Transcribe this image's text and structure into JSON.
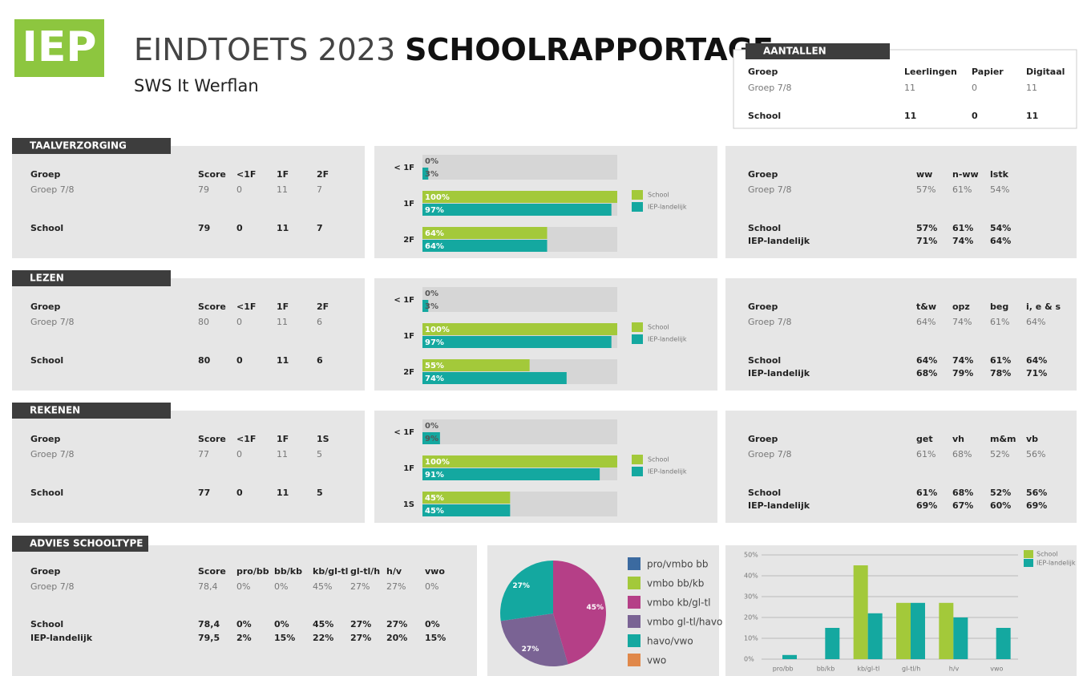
{
  "header": {
    "logo": "IEP",
    "title_light": "EINDTOETS 2023",
    "title_bold": "SCHOOLRAPPORTAGE",
    "school": "SWS It Werflan"
  },
  "aantallen": {
    "label": "AANTALLEN",
    "headers": [
      "Groep",
      "Leerlingen",
      "Papier",
      "Digitaal"
    ],
    "rows": [
      [
        "Groep 7/8",
        "11",
        "0",
        "11"
      ],
      [
        "School",
        "11",
        "0",
        "11"
      ]
    ]
  },
  "subjects": [
    {
      "label": "TAALVERZORGING",
      "table": {
        "headers": [
          "Groep",
          "Score",
          "<1F",
          "1F",
          "2F"
        ],
        "rows": [
          [
            "Groep 7/8",
            "79",
            "0",
            "11",
            "7"
          ],
          [
            "School",
            "79",
            "0",
            "11",
            "7"
          ]
        ]
      },
      "chart": {
        "type": "bar",
        "categories": [
          "< 1F",
          "1F",
          "2F"
        ],
        "xlim": [
          0,
          100
        ],
        "series": [
          {
            "name": "School",
            "color": "#a3c93a",
            "values": [
              0,
              100,
              64
            ],
            "value_labels": [
              "0%",
              "100%",
              "64%"
            ]
          },
          {
            "name": "IEP-landelijk",
            "color": "#14a8a0",
            "values": [
              3,
              97,
              64
            ],
            "value_labels": [
              "3%",
              "97%",
              "64%"
            ]
          }
        ]
      },
      "domains": {
        "headers": [
          "Groep",
          "ww",
          "n-ww",
          "lstk"
        ],
        "rows": [
          [
            "Groep 7/8",
            "57%",
            "61%",
            "54%"
          ],
          [
            "School",
            "57%",
            "61%",
            "54%"
          ],
          [
            "IEP-landelijk",
            "71%",
            "74%",
            "64%"
          ]
        ]
      }
    },
    {
      "label": "LEZEN",
      "table": {
        "headers": [
          "Groep",
          "Score",
          "<1F",
          "1F",
          "2F"
        ],
        "rows": [
          [
            "Groep 7/8",
            "80",
            "0",
            "11",
            "6"
          ],
          [
            "School",
            "80",
            "0",
            "11",
            "6"
          ]
        ]
      },
      "chart": {
        "type": "bar",
        "categories": [
          "< 1F",
          "1F",
          "2F"
        ],
        "xlim": [
          0,
          100
        ],
        "series": [
          {
            "name": "School",
            "color": "#a3c93a",
            "values": [
              0,
              100,
              55
            ],
            "value_labels": [
              "0%",
              "100%",
              "55%"
            ]
          },
          {
            "name": "IEP-landelijk",
            "color": "#14a8a0",
            "values": [
              3,
              97,
              74
            ],
            "value_labels": [
              "3%",
              "97%",
              "74%"
            ]
          }
        ]
      },
      "domains": {
        "headers": [
          "Groep",
          "t&w",
          "opz",
          "beg",
          "i, e & s"
        ],
        "rows": [
          [
            "Groep 7/8",
            "64%",
            "74%",
            "61%",
            "64%"
          ],
          [
            "School",
            "64%",
            "74%",
            "61%",
            "64%"
          ],
          [
            "IEP-landelijk",
            "68%",
            "79%",
            "78%",
            "71%"
          ]
        ]
      }
    },
    {
      "label": "REKENEN",
      "table": {
        "headers": [
          "Groep",
          "Score",
          "<1F",
          "1F",
          "1S"
        ],
        "rows": [
          [
            "Groep 7/8",
            "77",
            "0",
            "11",
            "5"
          ],
          [
            "School",
            "77",
            "0",
            "11",
            "5"
          ]
        ]
      },
      "chart": {
        "type": "bar",
        "categories": [
          "< 1F",
          "1F",
          "1S"
        ],
        "xlim": [
          0,
          100
        ],
        "series": [
          {
            "name": "School",
            "color": "#a3c93a",
            "values": [
              0,
              100,
              45
            ],
            "value_labels": [
              "0%",
              "100%",
              "45%"
            ]
          },
          {
            "name": "IEP-landelijk",
            "color": "#14a8a0",
            "values": [
              9,
              91,
              45
            ],
            "value_labels": [
              "9%",
              "91%",
              "45%"
            ]
          }
        ]
      },
      "domains": {
        "headers": [
          "Groep",
          "get",
          "vh",
          "m&m",
          "vb"
        ],
        "rows": [
          [
            "Groep 7/8",
            "61%",
            "68%",
            "52%",
            "56%"
          ],
          [
            "School",
            "61%",
            "68%",
            "52%",
            "56%"
          ],
          [
            "IEP-landelijk",
            "69%",
            "67%",
            "60%",
            "69%"
          ]
        ]
      }
    }
  ],
  "advies": {
    "label": "ADVIES SCHOOLTYPE",
    "table": {
      "headers": [
        "Groep",
        "Score",
        "pro/bb",
        "bb/kb",
        "kb/gl-tl",
        "gl-tl/h",
        "h/v",
        "vwo"
      ],
      "rows": [
        [
          "Groep 7/8",
          "78,4",
          "0%",
          "0%",
          "45%",
          "27%",
          "27%",
          "0%"
        ],
        [
          "School",
          "78,4",
          "0%",
          "0%",
          "45%",
          "27%",
          "27%",
          "0%"
        ],
        [
          "IEP-landelijk",
          "79,5",
          "2%",
          "15%",
          "22%",
          "27%",
          "20%",
          "15%"
        ]
      ]
    },
    "pie": {
      "type": "pie",
      "categories": [
        "pro/vmbo bb",
        "vmbo bb/kb",
        "vmbo kb/gl-tl",
        "vmbo gl-tl/havo",
        "havo/vwo",
        "vwo"
      ],
      "values": [
        0,
        0,
        45,
        27,
        27,
        0
      ],
      "value_labels": [
        null,
        null,
        "45%",
        "27%",
        "27%",
        null
      ],
      "colors": [
        "#3b6aa0",
        "#a3c93a",
        "#b53f87",
        "#7a6394",
        "#14a8a0",
        "#e0884a"
      ]
    },
    "bars": {
      "type": "bar",
      "categories": [
        "pro/bb",
        "bb/kb",
        "kb/gl-tl",
        "gl-tl/h",
        "h/v",
        "vwo"
      ],
      "ylim": [
        0,
        50
      ],
      "yticks": [
        {
          "value": 0,
          "label": "0%"
        },
        {
          "value": 10,
          "label": "10%"
        },
        {
          "value": 20,
          "label": "20%"
        },
        {
          "value": 30,
          "label": "30%"
        },
        {
          "value": 40,
          "label": "40%"
        },
        {
          "value": 50,
          "label": "50%"
        }
      ],
      "grid": true,
      "series": [
        {
          "name": "School",
          "color": "#a3c93a",
          "values": [
            0,
            0,
            45,
            27,
            27,
            0
          ]
        },
        {
          "name": "IEP-landelijk",
          "color": "#14a8a0",
          "values": [
            2,
            15,
            22,
            27,
            20,
            15
          ]
        }
      ]
    }
  }
}
